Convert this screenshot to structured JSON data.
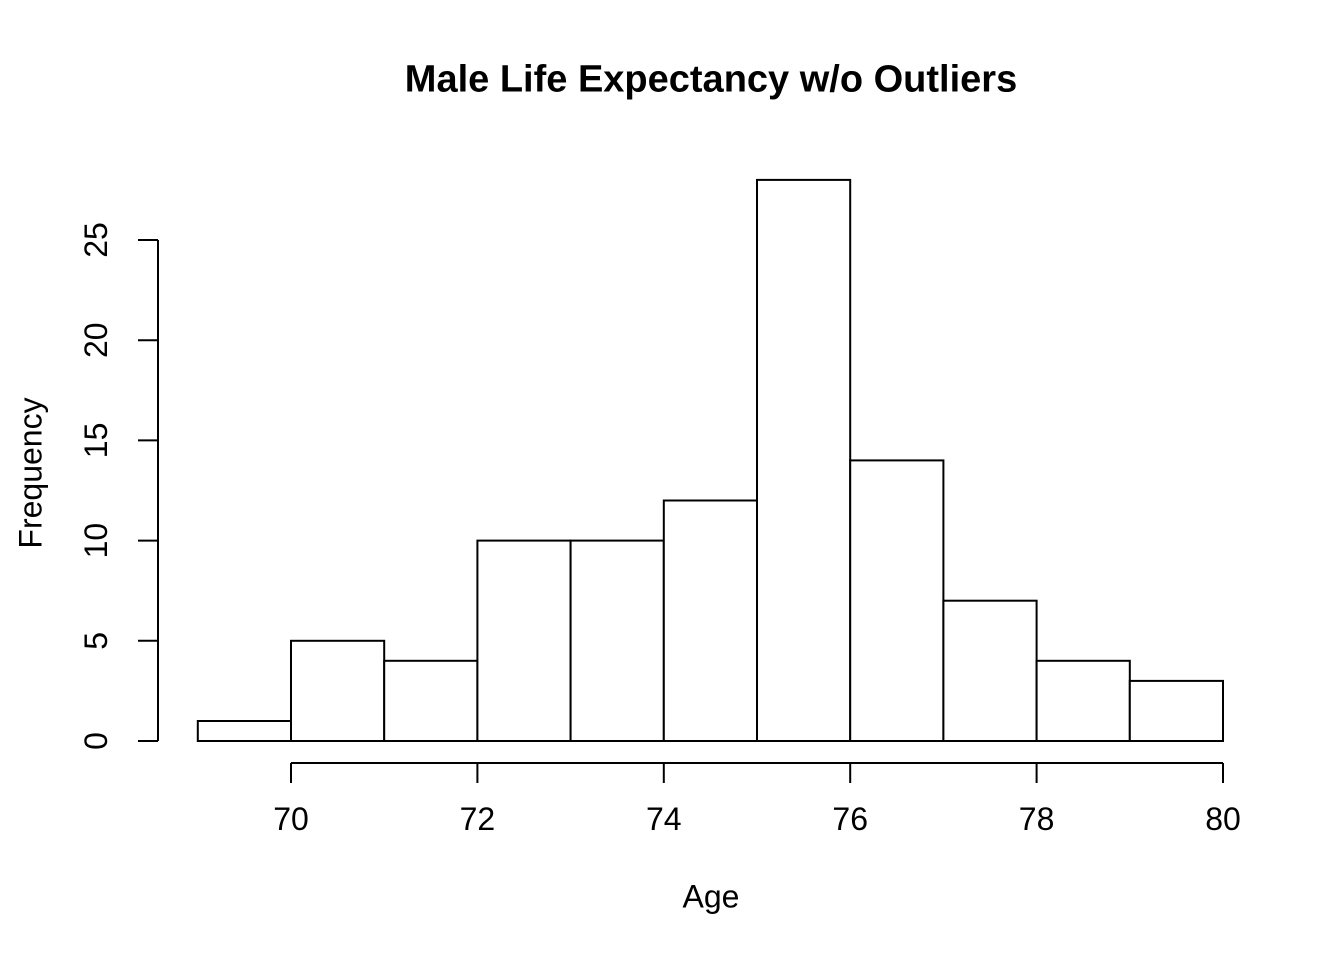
{
  "chart_data": {
    "type": "bar",
    "subtype": "histogram",
    "title": "Male Life Expectancy w/o Outliers",
    "xlabel": "Age",
    "ylabel": "Frequency",
    "bin_edges": [
      69,
      70,
      71,
      72,
      73,
      74,
      75,
      76,
      77,
      78,
      79,
      80
    ],
    "values": [
      1,
      5,
      4,
      10,
      10,
      12,
      28,
      14,
      7,
      4,
      3
    ],
    "x_ticks": [
      70,
      72,
      74,
      76,
      78,
      80
    ],
    "y_ticks": [
      0,
      5,
      10,
      15,
      20,
      25
    ],
    "xlim": [
      69,
      80
    ],
    "ylim": [
      0,
      28
    ],
    "grid": false,
    "legend_position": "none",
    "bar_fill": "#ffffff",
    "bar_stroke": "#000000",
    "axis_color": "#000000",
    "text_color": "#000000",
    "background": "#ffffff"
  }
}
